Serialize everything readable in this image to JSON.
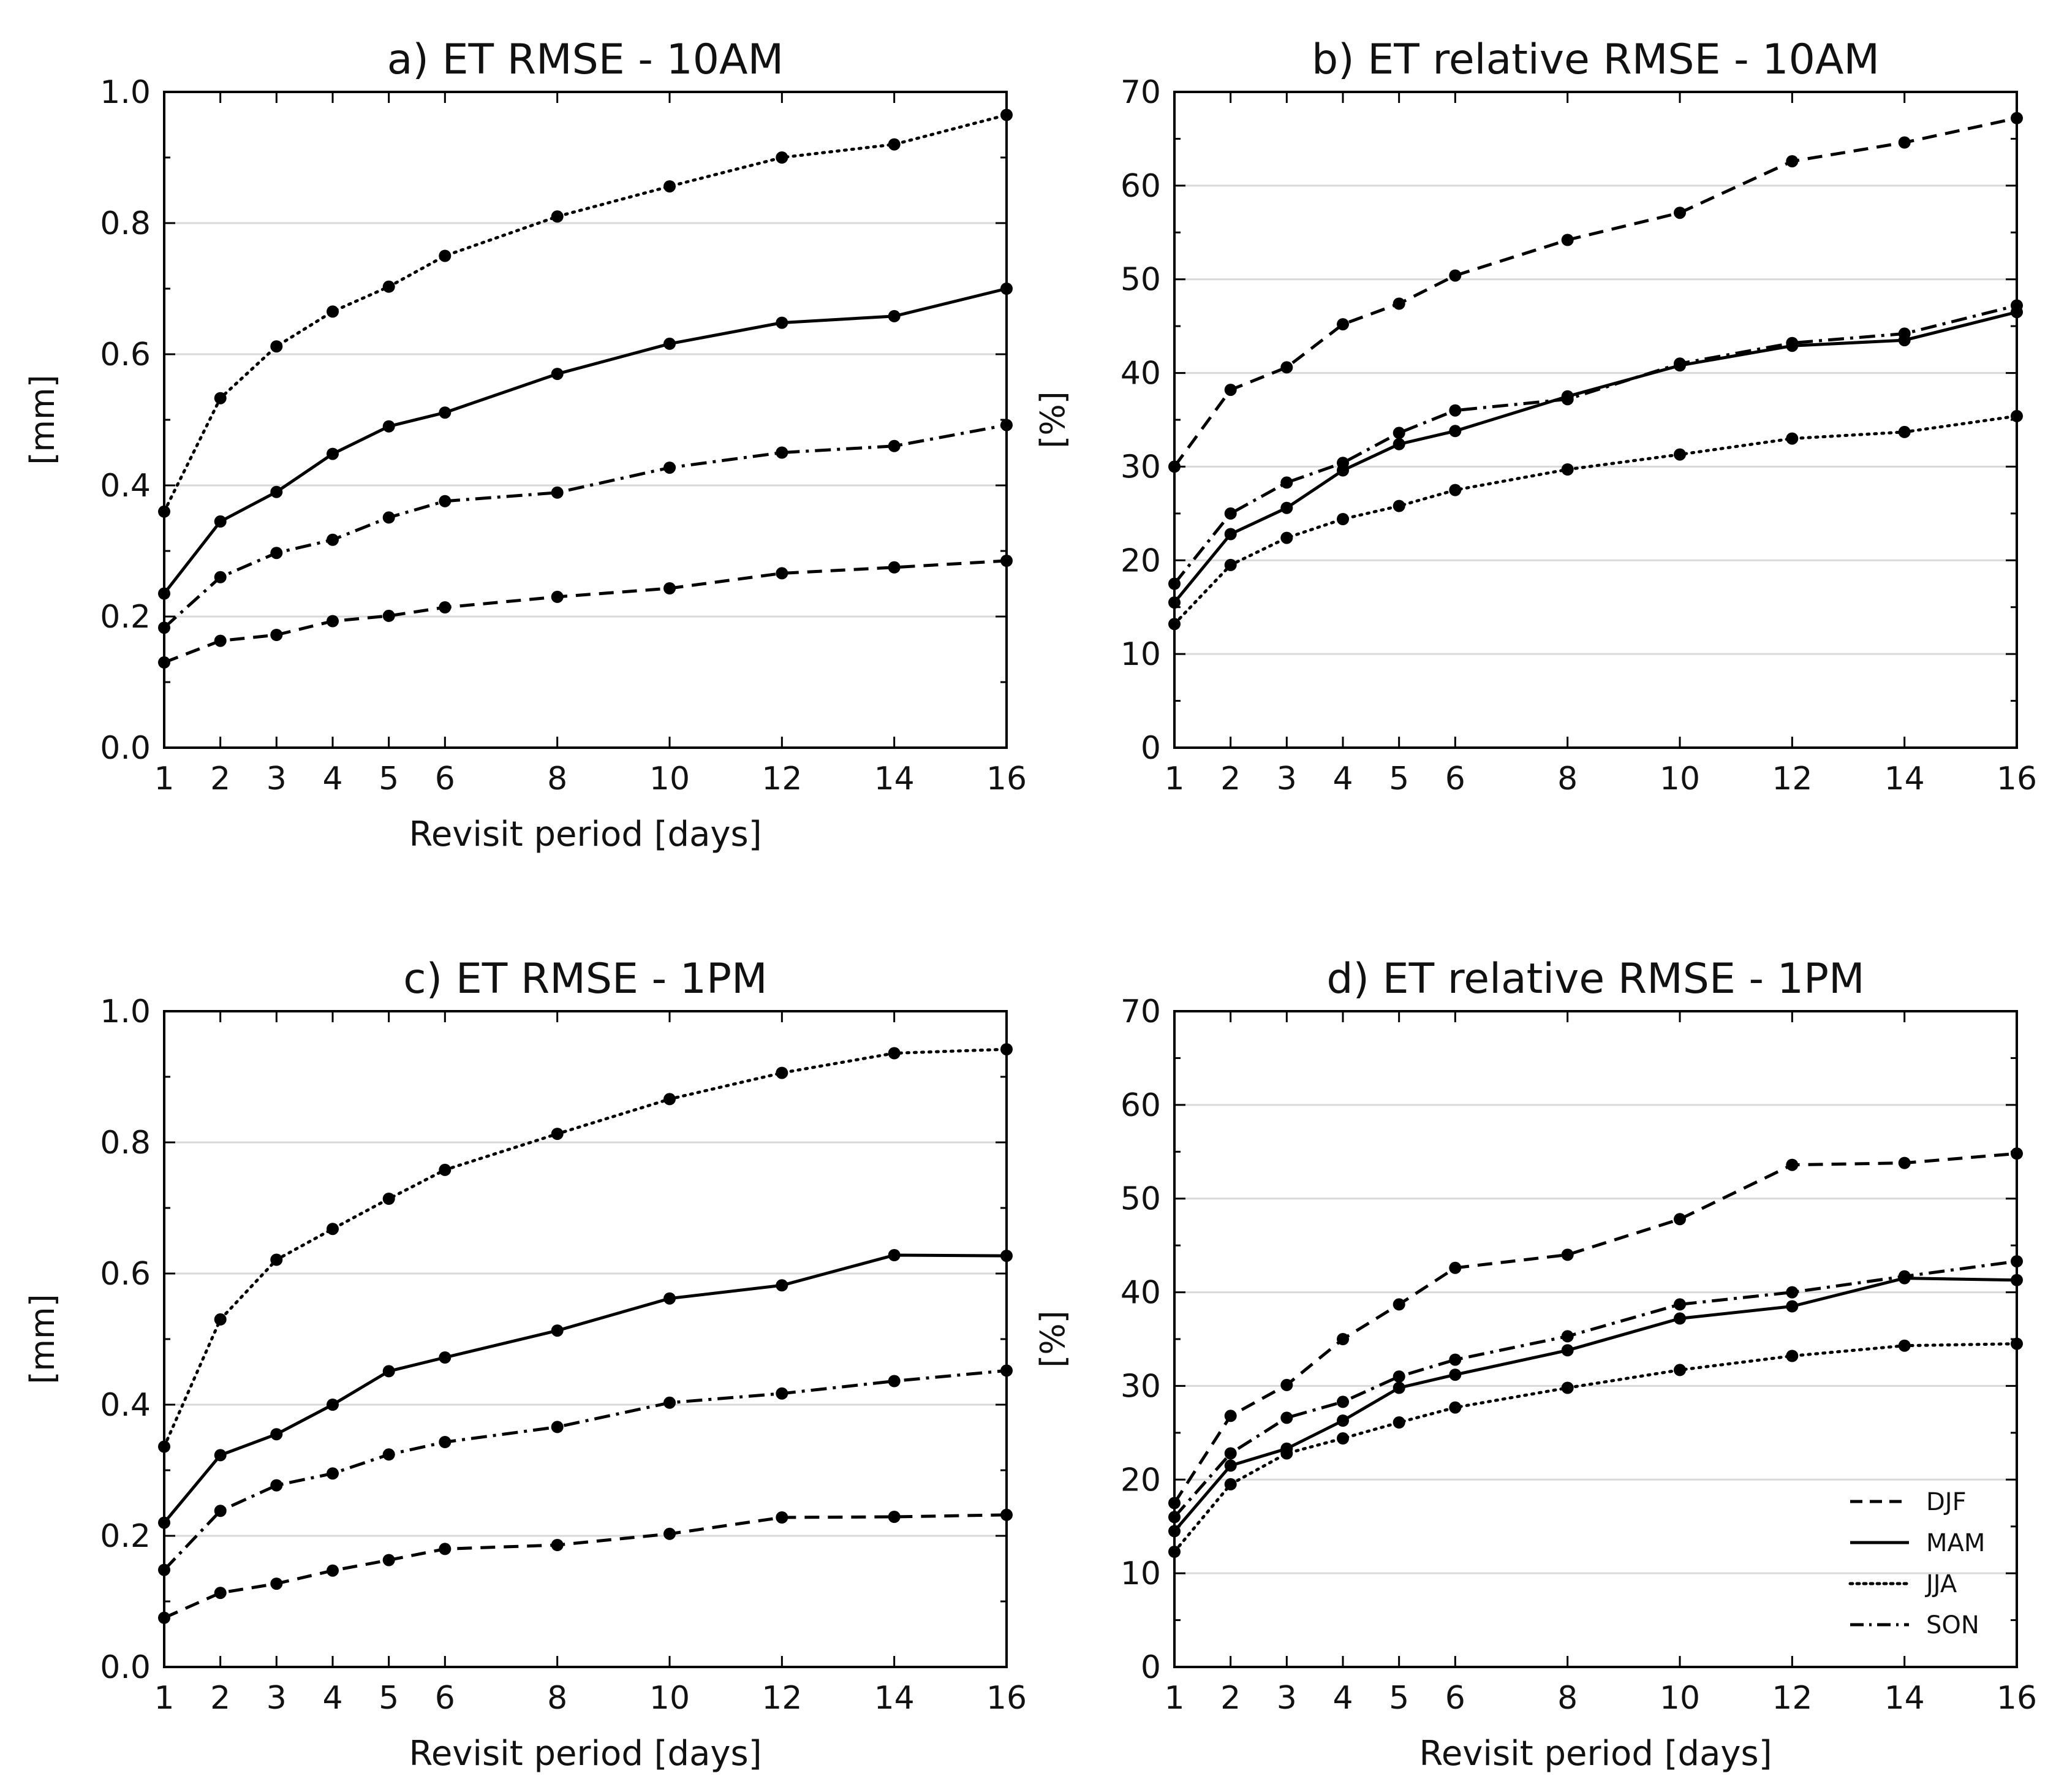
{
  "legend": {
    "placement": "bottom-right of panel d",
    "entries": [
      {
        "label": "DJF",
        "dash": "dashed"
      },
      {
        "label": "MAM",
        "dash": "solid"
      },
      {
        "label": "JJA",
        "dash": "dotted"
      },
      {
        "label": "SON",
        "dash": "dashdot"
      }
    ]
  },
  "styles": {
    "line_color": "#000000",
    "grid_color": "#d9d9d9"
  },
  "chart_data": [
    {
      "id": "a",
      "type": "line",
      "title": "a) ET RMSE - 10AM",
      "xlabel": "Revisit period [days]",
      "ylabel": "[mm]",
      "x": [
        1,
        2,
        3,
        4,
        5,
        6,
        8,
        10,
        12,
        14,
        16
      ],
      "xticks": [
        "1",
        "2",
        "3",
        "4",
        "5",
        "6",
        "8",
        "10",
        "12",
        "14",
        "16"
      ],
      "ylim": [
        0,
        1.0
      ],
      "yticks": [
        "0.0",
        "0.2",
        "0.4",
        "0.6",
        "0.8",
        "1.0"
      ],
      "series": [
        {
          "name": "DJF",
          "values": [
            0.13,
            0.163,
            0.172,
            0.193,
            0.201,
            0.214,
            0.23,
            0.243,
            0.266,
            0.275,
            0.285
          ]
        },
        {
          "name": "MAM",
          "values": [
            0.235,
            0.345,
            0.39,
            0.448,
            0.49,
            0.511,
            0.57,
            0.616,
            0.648,
            0.658,
            0.7
          ]
        },
        {
          "name": "JJA",
          "values": [
            0.36,
            0.533,
            0.612,
            0.665,
            0.703,
            0.75,
            0.81,
            0.856,
            0.9,
            0.92,
            0.965
          ]
        },
        {
          "name": "SON",
          "values": [
            0.183,
            0.26,
            0.297,
            0.317,
            0.351,
            0.376,
            0.389,
            0.427,
            0.45,
            0.46,
            0.492
          ]
        }
      ]
    },
    {
      "id": "b",
      "type": "line",
      "title": "b) ET relative RMSE - 10AM",
      "xlabel": "",
      "ylabel": "[%]",
      "x": [
        1,
        2,
        3,
        4,
        5,
        6,
        8,
        10,
        12,
        14,
        16
      ],
      "xticks": [
        "1",
        "2",
        "3",
        "4",
        "5",
        "6",
        "8",
        "10",
        "12",
        "14",
        "16"
      ],
      "ylim": [
        0,
        70
      ],
      "yticks": [
        "0",
        "10",
        "20",
        "30",
        "40",
        "50",
        "60",
        "70"
      ],
      "series": [
        {
          "name": "DJF",
          "values": [
            30.0,
            38.2,
            40.6,
            45.2,
            47.4,
            50.4,
            54.2,
            57.1,
            62.6,
            64.6,
            67.2
          ]
        },
        {
          "name": "MAM",
          "values": [
            15.5,
            22.8,
            25.6,
            29.6,
            32.4,
            33.8,
            37.5,
            40.8,
            42.9,
            43.5,
            46.5
          ]
        },
        {
          "name": "JJA",
          "values": [
            13.2,
            19.5,
            22.4,
            24.4,
            25.8,
            27.5,
            29.7,
            31.3,
            33.0,
            33.7,
            35.4
          ]
        },
        {
          "name": "SON",
          "values": [
            17.5,
            25.0,
            28.3,
            30.4,
            33.6,
            36.0,
            37.2,
            41.0,
            43.2,
            44.2,
            47.2
          ]
        }
      ]
    },
    {
      "id": "c",
      "type": "line",
      "title": "c) ET RMSE - 1PM",
      "xlabel": "Revisit period [days]",
      "ylabel": "[mm]",
      "x": [
        1,
        2,
        3,
        4,
        5,
        6,
        8,
        10,
        12,
        14,
        16
      ],
      "xticks": [
        "1",
        "2",
        "3",
        "4",
        "5",
        "6",
        "8",
        "10",
        "12",
        "14",
        "16"
      ],
      "ylim": [
        0,
        1.0
      ],
      "yticks": [
        "0.0",
        "0.2",
        "0.4",
        "0.6",
        "0.8",
        "1.0"
      ],
      "series": [
        {
          "name": "DJF",
          "values": [
            0.075,
            0.113,
            0.127,
            0.147,
            0.163,
            0.18,
            0.186,
            0.203,
            0.228,
            0.229,
            0.232
          ]
        },
        {
          "name": "MAM",
          "values": [
            0.22,
            0.323,
            0.355,
            0.4,
            0.451,
            0.472,
            0.513,
            0.562,
            0.582,
            0.628,
            0.627
          ]
        },
        {
          "name": "JJA",
          "values": [
            0.336,
            0.53,
            0.621,
            0.668,
            0.714,
            0.758,
            0.813,
            0.866,
            0.906,
            0.936,
            0.942
          ]
        },
        {
          "name": "SON",
          "values": [
            0.148,
            0.238,
            0.277,
            0.295,
            0.324,
            0.343,
            0.366,
            0.403,
            0.417,
            0.436,
            0.452
          ]
        }
      ]
    },
    {
      "id": "d",
      "type": "line",
      "title": "d) ET relative RMSE - 1PM",
      "xlabel": "Revisit period [days]",
      "ylabel": "[%]",
      "x": [
        1,
        2,
        3,
        4,
        5,
        6,
        8,
        10,
        12,
        14,
        16
      ],
      "xticks": [
        "1",
        "2",
        "3",
        "4",
        "5",
        "6",
        "8",
        "10",
        "12",
        "14",
        "16"
      ],
      "ylim": [
        0,
        70
      ],
      "yticks": [
        "0",
        "10",
        "20",
        "30",
        "40",
        "50",
        "60",
        "70"
      ],
      "series": [
        {
          "name": "DJF",
          "values": [
            17.5,
            26.8,
            30.1,
            35.0,
            38.7,
            42.6,
            44.0,
            47.8,
            53.6,
            53.8,
            54.8
          ]
        },
        {
          "name": "MAM",
          "values": [
            14.5,
            21.5,
            23.3,
            26.3,
            29.8,
            31.2,
            33.8,
            37.2,
            38.5,
            41.5,
            41.3
          ]
        },
        {
          "name": "JJA",
          "values": [
            12.3,
            19.5,
            22.8,
            24.4,
            26.1,
            27.7,
            29.8,
            31.7,
            33.2,
            34.3,
            34.5
          ]
        },
        {
          "name": "SON",
          "values": [
            16.0,
            22.8,
            26.6,
            28.3,
            31.0,
            32.8,
            35.3,
            38.7,
            40.0,
            41.7,
            43.3
          ]
        }
      ]
    }
  ]
}
